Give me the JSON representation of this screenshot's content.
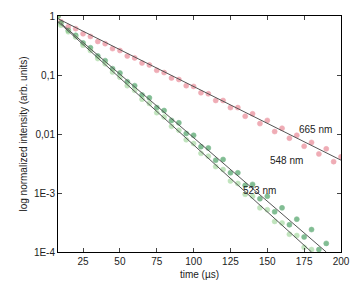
{
  "chart_data": {
    "type": "scatter",
    "x_label": "time (µs)",
    "y_label": "log normalized intensity (arb. units)",
    "log": "y",
    "grid": false,
    "xlim": [
      8,
      200
    ],
    "xticks": [
      25,
      50,
      75,
      100,
      125,
      150,
      175,
      200
    ],
    "ylim": [
      0.0001,
      1
    ],
    "yticks": [
      {
        "value": 0.0001,
        "label": "1E-4"
      },
      {
        "value": 0.001,
        "label": "1E-3"
      },
      {
        "value": 0.01,
        "label": "0,01"
      },
      {
        "value": 0.1,
        "label": "0,1"
      },
      1
    ],
    "series": [
      {
        "type": "scatter",
        "marker": "circle",
        "color": "#e8808e",
        "x": [
          8,
          10,
          15,
          20,
          25,
          30,
          35,
          40,
          45,
          50,
          55,
          60,
          65,
          70,
          75,
          80,
          85,
          90,
          95,
          100,
          105,
          110,
          115,
          120,
          125,
          130,
          135,
          140,
          145,
          150,
          155,
          160,
          165,
          170,
          175,
          180,
          185,
          190,
          195,
          200
        ],
        "values": [
          1.0,
          0.8,
          0.66,
          0.61,
          0.5,
          0.45,
          0.37,
          0.34,
          0.28,
          0.26,
          0.21,
          0.195,
          0.16,
          0.148,
          0.12,
          0.11,
          0.089,
          0.084,
          0.066,
          0.064,
          0.05,
          0.048,
          0.037,
          0.037,
          0.028,
          0.028,
          0.02,
          0.022,
          0.015,
          0.017,
          0.011,
          0.0125,
          0.0085,
          0.0095,
          0.0062,
          0.0072,
          0.0046,
          0.0056,
          0.0034,
          0.0041
        ]
      },
      {
        "type": "scatter",
        "marker": "circle",
        "color": "#3f9a5a",
        "x": [
          8,
          10,
          15,
          20,
          25,
          30,
          35,
          40,
          45,
          50,
          55,
          60,
          65,
          70,
          75,
          80,
          85,
          90,
          95,
          100,
          105,
          110,
          115,
          120,
          125,
          130,
          135,
          140,
          145,
          150,
          155,
          160,
          165,
          170,
          175,
          180,
          185,
          190
        ],
        "values": [
          1.0,
          0.76,
          0.57,
          0.47,
          0.35,
          0.29,
          0.21,
          0.175,
          0.128,
          0.108,
          0.077,
          0.066,
          0.046,
          0.041,
          0.028,
          0.025,
          0.017,
          0.0155,
          0.0102,
          0.0095,
          0.0061,
          0.0058,
          0.0036,
          0.0037,
          0.0022,
          0.0022,
          0.00135,
          0.0014,
          0.0008,
          0.00088,
          0.00048,
          0.00056,
          0.00029,
          0.00036,
          0.00018,
          0.00024,
          0.00011,
          0.00014
        ]
      },
      {
        "type": "scatter",
        "marker": "circle",
        "color": "#9fd69a",
        "x": [
          8,
          10,
          15,
          20,
          25,
          30,
          35,
          40,
          45,
          50,
          55,
          60,
          65,
          70,
          75,
          80,
          85,
          90,
          95,
          100,
          105,
          110,
          115,
          120,
          125,
          130,
          135,
          140,
          145,
          150,
          155,
          160,
          165,
          170,
          175,
          180
        ],
        "values": [
          1.0,
          0.7,
          0.54,
          0.44,
          0.32,
          0.26,
          0.19,
          0.155,
          0.112,
          0.092,
          0.066,
          0.055,
          0.039,
          0.033,
          0.023,
          0.0195,
          0.0135,
          0.0116,
          0.008,
          0.0069,
          0.0047,
          0.0042,
          0.0028,
          0.0025,
          0.0016,
          0.00145,
          0.00095,
          0.00088,
          0.00056,
          0.00052,
          0.00033,
          0.00031,
          0.0002,
          0.00019,
          0.00012,
          0.00011
        ]
      },
      {
        "type": "line",
        "line_style": "solid",
        "color": "#555555",
        "x": [
          8,
          200
        ],
        "values": [
          0.9,
          0.0036
        ]
      },
      {
        "type": "line",
        "line_style": "solid",
        "color": "#555555",
        "x": [
          10,
          190
        ],
        "values": [
          0.75,
          0.0001
        ]
      },
      {
        "type": "line",
        "line_style": "solid",
        "color": "#555555",
        "x": [
          8,
          180
        ],
        "values": [
          0.8,
          0.0001
        ]
      }
    ],
    "annotations": [
      {
        "text": "665 nm",
        "x": 183,
        "y": 0.012
      },
      {
        "text": "548 nm",
        "x": 163,
        "y": 0.0035
      },
      {
        "text": "523 nm",
        "x": 145,
        "y": 0.0011
      }
    ]
  }
}
